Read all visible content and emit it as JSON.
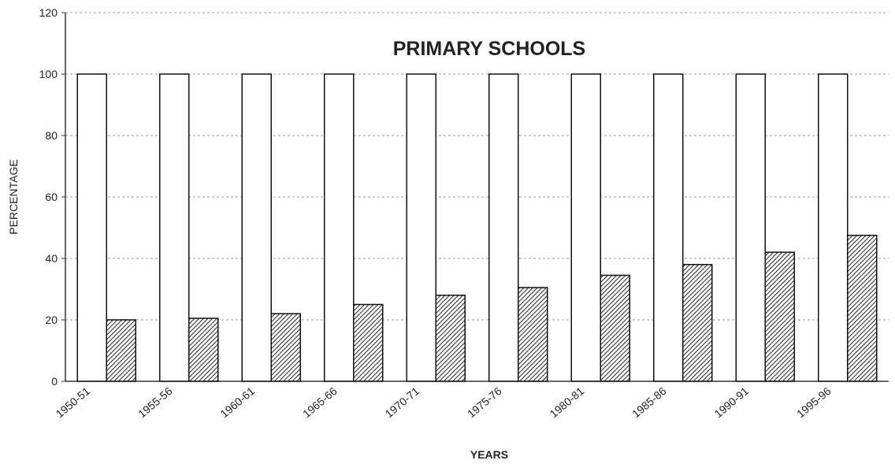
{
  "chart_data": {
    "type": "bar",
    "title": "PRIMARY SCHOOLS",
    "x_label": "YEARS",
    "y_label": "PERCENTAGE",
    "categories": [
      "1950-51",
      "1955-56",
      "1960-61",
      "1965-66",
      "1970-71",
      "1975-76",
      "1980-81",
      "1985-86",
      "1990-91",
      "1995-96"
    ],
    "series": [
      {
        "color": "#ffffff",
        "hatch": false,
        "values": [
          100,
          100,
          100,
          100,
          100,
          100,
          100,
          100,
          100,
          100
        ]
      },
      {
        "color": "#333333",
        "hatch": true,
        "values": [
          20,
          20.5,
          22,
          25,
          28,
          30.5,
          34.5,
          38,
          42,
          47.5
        ]
      }
    ],
    "ylim": [
      0,
      120
    ],
    "yticks": [
      0,
      20,
      40,
      60,
      80,
      100,
      120
    ],
    "grid": true
  }
}
